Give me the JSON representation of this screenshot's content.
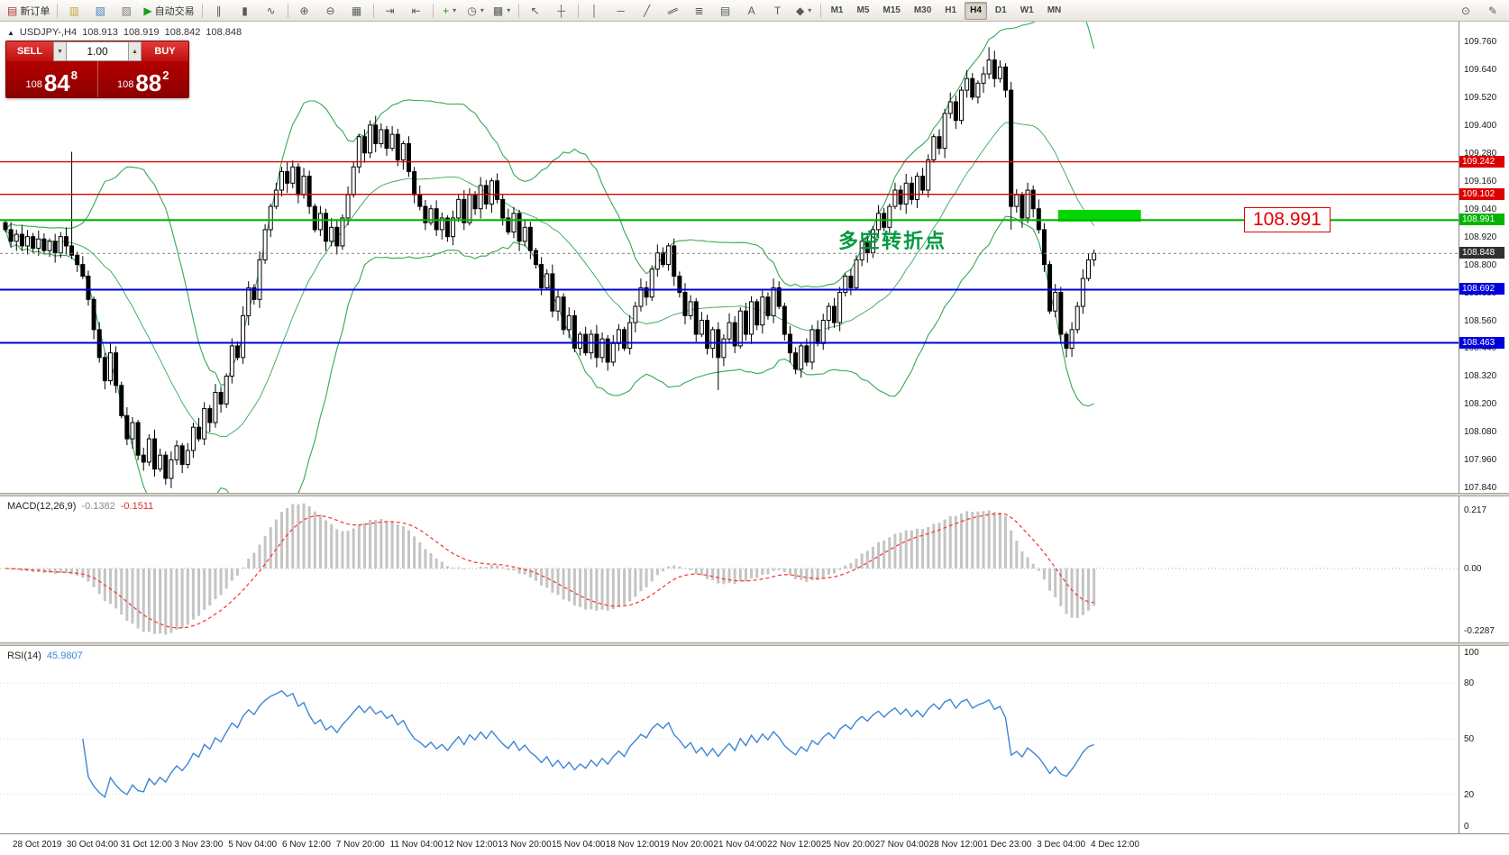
{
  "toolbar": {
    "items": [
      {
        "name": "new-order-button",
        "glyph": "▤",
        "glyph_color": "#b03030",
        "label": "新订单"
      },
      {
        "sep": true
      },
      {
        "name": "market-watch-button",
        "glyph": "▥",
        "glyph_color": "#c9a43c"
      },
      {
        "name": "data-window-button",
        "glyph": "▧",
        "glyph_color": "#4a7fc1"
      },
      {
        "name": "strategy-tester-button",
        "glyph": "▨",
        "glyph_color": "#7a7a7a"
      },
      {
        "name": "autotrading-button",
        "glyph": "▶",
        "glyph_color": "#16a016",
        "label": "自动交易"
      },
      {
        "sep": true
      },
      {
        "name": "bar-chart-button",
        "glyph": "∥"
      },
      {
        "name": "candlestick-button",
        "glyph": "▮"
      },
      {
        "name": "line-chart-button",
        "glyph": "∿"
      },
      {
        "sep": true
      },
      {
        "name": "zoom-in-button",
        "glyph": "⊕"
      },
      {
        "name": "zoom-out-button",
        "glyph": "⊖"
      },
      {
        "name": "grid-button",
        "glyph": "▦"
      },
      {
        "sep": true
      },
      {
        "name": "auto-scroll-button",
        "glyph": "⇥"
      },
      {
        "name": "chart-shift-button",
        "glyph": "⇤"
      },
      {
        "sep": true
      },
      {
        "name": "indicators-button",
        "glyph": "+",
        "glyph_color": "#16a016",
        "caret": true
      },
      {
        "name": "periods-button",
        "glyph": "◷",
        "caret": true
      },
      {
        "name": "templates-button",
        "glyph": "▩",
        "caret": true
      },
      {
        "sep": true
      },
      {
        "name": "cursor-button",
        "glyph": "↖"
      },
      {
        "name": "crosshair-button",
        "glyph": "┼"
      },
      {
        "sep": true
      },
      {
        "name": "vertical-line-button",
        "glyph": "│"
      },
      {
        "name": "horizontal-line-button",
        "glyph": "─"
      },
      {
        "name": "trendline-button",
        "glyph": "╱"
      },
      {
        "name": "channel-button",
        "glyph": "∥",
        "rotate": true
      },
      {
        "name": "fibonacci-button",
        "glyph": "≣"
      },
      {
        "name": "shapes-grid-button",
        "glyph": "▤"
      },
      {
        "name": "text-button",
        "glyph": "A"
      },
      {
        "name": "text-label-button",
        "glyph": "T"
      },
      {
        "name": "arrows-button",
        "glyph": "◆",
        "caret": true
      }
    ],
    "timeframes": [
      "M1",
      "M5",
      "M15",
      "M30",
      "H1",
      "H4",
      "D1",
      "W1",
      "MN"
    ],
    "active_timeframe": "H4",
    "right_items": [
      {
        "name": "search-button",
        "glyph": "⊙"
      },
      {
        "name": "edit-button",
        "glyph": "✎"
      }
    ]
  },
  "info_line": {
    "symbol": "USDJPY-,H4",
    "open": "108.913",
    "high": "108.919",
    "low": "108.842",
    "close": "108.848"
  },
  "trade": {
    "sell_label": "SELL",
    "buy_label": "BUY",
    "volume": "1.00",
    "sell_small": "108",
    "sell_big": "84",
    "sell_sup": "8",
    "buy_small": "108",
    "buy_big": "88",
    "buy_sup": "2"
  },
  "annotations": {
    "turning_point_text": "多空转折点",
    "big_price_label": "108.991"
  },
  "macd_panel": {
    "title": "MACD(12,26,9)",
    "value1": "-0.1382",
    "value2": "-0.1511",
    "scale_top": "0.217",
    "scale_zero": "0.00",
    "scale_bottom": "-0.2287"
  },
  "rsi_panel": {
    "title": "RSI(14)",
    "value": "45.9807",
    "scale": [
      100,
      80,
      50,
      20,
      0
    ]
  },
  "price_axis": {
    "ticks": [
      "109.760",
      "109.640",
      "109.520",
      "109.400",
      "109.280",
      "109.160",
      "109.040",
      "108.920",
      "108.800",
      "108.680",
      "108.560",
      "108.440",
      "108.320",
      "108.200",
      "108.080",
      "107.960",
      "107.840"
    ]
  },
  "time_axis": {
    "labels": [
      "28 Oct 2019",
      "30 Oct 04:00",
      "31 Oct 12:00",
      "3 Nov 23:00",
      "5 Nov 04:00",
      "6 Nov 12:00",
      "7 Nov 20:00",
      "11 Nov 04:00",
      "12 Nov 12:00",
      "13 Nov 20:00",
      "15 Nov 04:00",
      "18 Nov 12:00",
      "19 Nov 20:00",
      "21 Nov 04:00",
      "22 Nov 12:00",
      "25 Nov 20:00",
      "27 Nov 04:00",
      "28 Nov 12:00",
      "1 Dec 23:00",
      "3 Dec 04:00",
      "4 Dec 12:00"
    ]
  },
  "chart_data": {
    "type": "candlestick",
    "symbol": "USDJPY",
    "timeframe": "H4",
    "price_range": [
      107.84,
      109.845
    ],
    "current_price": 108.848,
    "first_open": 108.98,
    "closes": [
      108.95,
      108.9,
      108.93,
      108.88,
      108.92,
      108.87,
      108.91,
      108.86,
      108.9,
      108.85,
      108.92,
      108.88,
      108.84,
      108.8,
      108.75,
      108.65,
      108.52,
      108.4,
      108.3,
      108.42,
      108.28,
      108.15,
      108.05,
      108.12,
      107.98,
      107.95,
      108.05,
      107.92,
      107.98,
      107.88,
      107.96,
      108.02,
      107.94,
      108.0,
      108.1,
      108.05,
      108.18,
      108.12,
      108.25,
      108.2,
      108.32,
      108.45,
      108.4,
      108.58,
      108.7,
      108.65,
      108.82,
      108.95,
      109.05,
      109.12,
      109.2,
      109.15,
      109.22,
      109.1,
      109.18,
      109.05,
      108.95,
      109.02,
      108.9,
      108.96,
      108.88,
      109.0,
      109.1,
      109.22,
      109.35,
      109.28,
      109.4,
      109.32,
      109.38,
      109.3,
      109.36,
      109.25,
      109.32,
      109.2,
      109.1,
      109.05,
      108.98,
      109.04,
      108.95,
      109.0,
      108.92,
      109.0,
      109.08,
      108.98,
      109.1,
      109.04,
      109.14,
      109.06,
      109.16,
      109.08,
      109.0,
      108.94,
      109.02,
      108.9,
      108.96,
      108.86,
      108.8,
      108.7,
      108.76,
      108.6,
      108.66,
      108.52,
      108.58,
      108.44,
      108.5,
      108.42,
      108.5,
      108.4,
      108.48,
      108.38,
      108.46,
      108.52,
      108.44,
      108.55,
      108.62,
      108.7,
      108.66,
      108.78,
      108.85,
      108.8,
      108.88,
      108.75,
      108.68,
      108.58,
      108.64,
      108.5,
      108.56,
      108.44,
      108.52,
      108.4,
      108.48,
      108.55,
      108.45,
      108.6,
      108.5,
      108.64,
      108.54,
      108.66,
      108.58,
      108.7,
      108.62,
      108.5,
      108.42,
      108.35,
      108.45,
      108.38,
      108.52,
      108.46,
      108.56,
      108.62,
      108.55,
      108.68,
      108.75,
      108.7,
      108.82,
      108.9,
      108.85,
      108.95,
      109.02,
      108.96,
      109.05,
      109.12,
      109.06,
      109.15,
      109.08,
      109.18,
      109.12,
      109.25,
      109.35,
      109.3,
      109.45,
      109.5,
      109.42,
      109.55,
      109.6,
      109.52,
      109.58,
      109.62,
      109.68,
      109.6,
      109.65,
      109.55,
      109.05,
      109.1,
      109.0,
      109.12,
      109.04,
      108.95,
      108.8,
      108.6,
      108.68,
      108.5,
      108.44,
      108.52,
      108.62,
      108.74,
      108.82,
      108.848
    ],
    "spikes": [
      {
        "i": 12,
        "h": 109.285
      },
      {
        "i": 129,
        "l": 108.26
      },
      {
        "i": 178,
        "h": 109.735
      },
      {
        "i": 182,
        "l": 108.95
      },
      {
        "i": 192,
        "l": 108.4
      }
    ],
    "bollinger": {
      "period": 20,
      "deviation": 2,
      "color": "#35a854"
    },
    "horizontal_lines": [
      {
        "price": 109.242,
        "label": "109.242",
        "color": "#dd0000",
        "stroke_w": 1.4
      },
      {
        "price": 109.102,
        "label": "109.102",
        "color": "#dd0000",
        "stroke_w": 1.4
      },
      {
        "price": 108.991,
        "label": "108.991",
        "color": "#00b400",
        "stroke_w": 2.2
      },
      {
        "price": 108.692,
        "label": "108.692",
        "color": "#0000dd",
        "stroke_w": 2
      },
      {
        "price": 108.463,
        "label": "108.463",
        "color": "#0000dd",
        "stroke_w": 2
      }
    ],
    "current_tag": {
      "label": "108.848",
      "color": "#303030"
    },
    "green_box": {
      "i1": 190.5,
      "i2": 205.5,
      "p1": 108.985,
      "p2": 109.035,
      "color": "#00d800"
    },
    "macd": {
      "histogram_color": "#c4c4c4",
      "signal_color": "#ff3a3a",
      "value_range": [
        -0.26,
        0.25
      ]
    },
    "rsi": {
      "line_color": "#3e86d6",
      "levels": [
        80,
        50,
        20
      ]
    }
  }
}
